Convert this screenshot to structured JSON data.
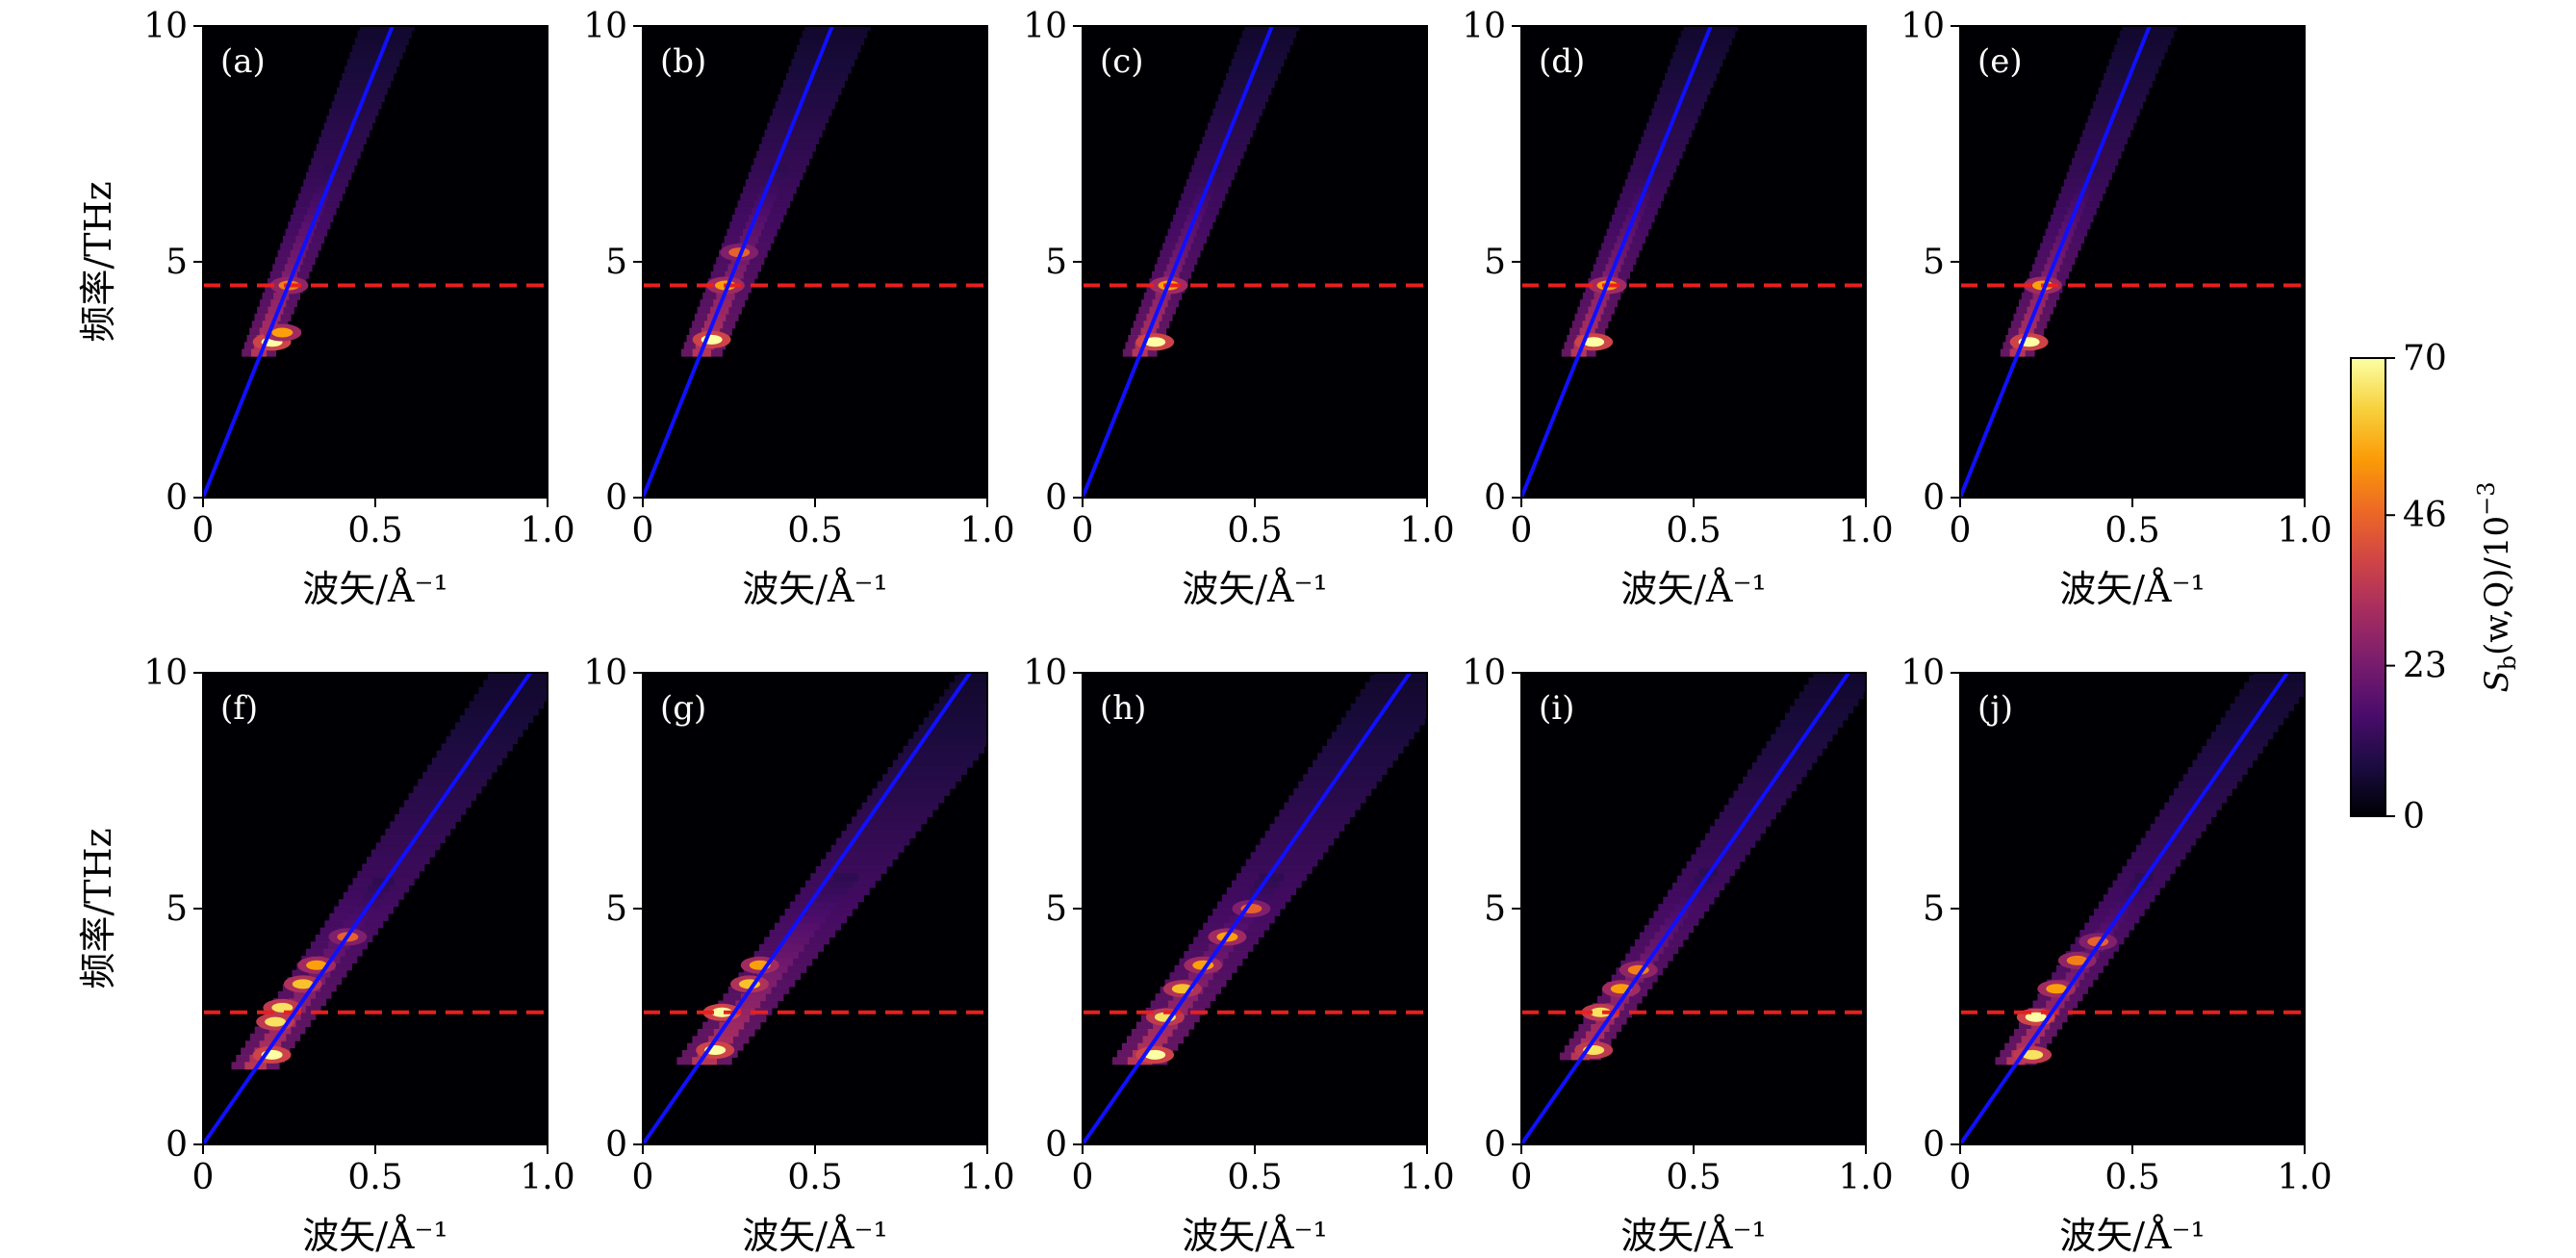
{
  "figure": {
    "colormap": "inferno",
    "colors": {
      "background_plot": "#000004",
      "dispersion_line": "#1010ff",
      "reference_line": "#e8201c",
      "panel_label": "#ffffff"
    }
  },
  "chart_data": [
    {
      "id": "a",
      "type": "heatmap",
      "panel_label": "(a)",
      "xlabel": "波矢/Å⁻¹",
      "ylabel": "频率/THz",
      "xlim": [
        0,
        1.0
      ],
      "ylim": [
        0,
        10
      ],
      "xticks": [
        "0",
        "0.5",
        "1.0"
      ],
      "yticks": [
        "0",
        "5",
        "10"
      ],
      "dispersion_line": {
        "x": [
          0,
          0.55
        ],
        "y": [
          0,
          10
        ]
      },
      "reference_line_y": 4.5,
      "hotspots": [
        {
          "q": 0.2,
          "f": 3.3,
          "intensity": 70
        },
        {
          "q": 0.23,
          "f": 3.5,
          "intensity": 55
        },
        {
          "q": 0.25,
          "f": 4.5,
          "intensity": 50
        }
      ],
      "ridge": {
        "slope": 18.5,
        "width": 0.05,
        "fmin": 3.0,
        "fmax": 10
      }
    },
    {
      "id": "b",
      "type": "heatmap",
      "panel_label": "(b)",
      "xlabel": "波矢/Å⁻¹",
      "ylabel": "",
      "xlim": [
        0,
        1.0
      ],
      "ylim": [
        0,
        10
      ],
      "xticks": [
        "0",
        "0.5",
        "1.0"
      ],
      "yticks": [
        "0",
        "5",
        "10"
      ],
      "dispersion_line": {
        "x": [
          0,
          0.55
        ],
        "y": [
          0,
          10
        ]
      },
      "reference_line_y": 4.5,
      "hotspots": [
        {
          "q": 0.2,
          "f": 3.35,
          "intensity": 70
        },
        {
          "q": 0.24,
          "f": 4.5,
          "intensity": 55
        },
        {
          "q": 0.28,
          "f": 5.2,
          "intensity": 45
        }
      ],
      "ridge": {
        "slope": 17.5,
        "width": 0.06,
        "fmin": 3.0,
        "fmax": 10
      }
    },
    {
      "id": "c",
      "type": "heatmap",
      "panel_label": "(c)",
      "xlabel": "波矢/Å⁻¹",
      "ylabel": "",
      "xlim": [
        0,
        1.0
      ],
      "ylim": [
        0,
        10
      ],
      "xticks": [
        "0",
        "0.5",
        "1.0"
      ],
      "yticks": [
        "0",
        "5",
        "10"
      ],
      "dispersion_line": {
        "x": [
          0,
          0.55
        ],
        "y": [
          0,
          10
        ]
      },
      "reference_line_y": 4.5,
      "hotspots": [
        {
          "q": 0.21,
          "f": 3.3,
          "intensity": 70
        },
        {
          "q": 0.25,
          "f": 4.5,
          "intensity": 55
        }
      ],
      "ridge": {
        "slope": 18.0,
        "width": 0.05,
        "fmin": 3.0,
        "fmax": 10
      }
    },
    {
      "id": "d",
      "type": "heatmap",
      "panel_label": "(d)",
      "xlabel": "波矢/Å⁻¹",
      "ylabel": "",
      "xlim": [
        0,
        1.0
      ],
      "ylim": [
        0,
        10
      ],
      "xticks": [
        "0",
        "0.5",
        "1.0"
      ],
      "yticks": [
        "0",
        "5",
        "10"
      ],
      "dispersion_line": {
        "x": [
          0,
          0.55
        ],
        "y": [
          0,
          10
        ]
      },
      "reference_line_y": 4.5,
      "hotspots": [
        {
          "q": 0.21,
          "f": 3.3,
          "intensity": 70
        },
        {
          "q": 0.25,
          "f": 4.5,
          "intensity": 55
        }
      ],
      "ridge": {
        "slope": 18.0,
        "width": 0.05,
        "fmin": 3.0,
        "fmax": 10
      }
    },
    {
      "id": "e",
      "type": "heatmap",
      "panel_label": "(e)",
      "xlabel": "波矢/Å⁻¹",
      "ylabel": "",
      "xlim": [
        0,
        1.0
      ],
      "ylim": [
        0,
        10
      ],
      "xticks": [
        "0",
        "0.5",
        "1.0"
      ],
      "yticks": [
        "0",
        "5",
        "10"
      ],
      "dispersion_line": {
        "x": [
          0,
          0.55
        ],
        "y": [
          0,
          10
        ]
      },
      "reference_line_y": 4.5,
      "hotspots": [
        {
          "q": 0.2,
          "f": 3.3,
          "intensity": 70
        },
        {
          "q": 0.24,
          "f": 4.5,
          "intensity": 55
        }
      ],
      "ridge": {
        "slope": 18.0,
        "width": 0.05,
        "fmin": 3.0,
        "fmax": 10
      }
    },
    {
      "id": "f",
      "type": "heatmap",
      "panel_label": "(f)",
      "xlabel": "波矢/Å⁻¹",
      "ylabel": "频率/THz",
      "xlim": [
        0,
        1.0
      ],
      "ylim": [
        0,
        10
      ],
      "xticks": [
        "0",
        "0.5",
        "1.0"
      ],
      "yticks": [
        "0",
        "5",
        "10"
      ],
      "dispersion_line": {
        "x": [
          0,
          0.95
        ],
        "y": [
          0,
          10
        ]
      },
      "reference_line_y": 2.8,
      "hotspots": [
        {
          "q": 0.2,
          "f": 1.9,
          "intensity": 70
        },
        {
          "q": 0.21,
          "f": 2.6,
          "intensity": 65
        },
        {
          "q": 0.23,
          "f": 2.9,
          "intensity": 65
        },
        {
          "q": 0.29,
          "f": 3.4,
          "intensity": 60
        },
        {
          "q": 0.33,
          "f": 3.8,
          "intensity": 55
        },
        {
          "q": 0.42,
          "f": 4.4,
          "intensity": 45
        }
      ],
      "ridge": {
        "slope": 10.5,
        "width": 0.07,
        "fmin": 1.6,
        "fmax": 10
      }
    },
    {
      "id": "g",
      "type": "heatmap",
      "panel_label": "(g)",
      "xlabel": "波矢/Å⁻¹",
      "ylabel": "",
      "xlim": [
        0,
        1.0
      ],
      "ylim": [
        0,
        10
      ],
      "xticks": [
        "0",
        "0.5",
        "1.0"
      ],
      "yticks": [
        "0",
        "5",
        "10"
      ],
      "dispersion_line": {
        "x": [
          0,
          0.95
        ],
        "y": [
          0,
          10
        ]
      },
      "reference_line_y": 2.8,
      "hotspots": [
        {
          "q": 0.21,
          "f": 2.0,
          "intensity": 70
        },
        {
          "q": 0.23,
          "f": 2.8,
          "intensity": 70
        },
        {
          "q": 0.31,
          "f": 3.4,
          "intensity": 60
        },
        {
          "q": 0.34,
          "f": 3.8,
          "intensity": 55
        }
      ],
      "ridge": {
        "slope": 9.5,
        "width": 0.08,
        "fmin": 1.7,
        "fmax": 10
      }
    },
    {
      "id": "h",
      "type": "heatmap",
      "panel_label": "(h)",
      "xlabel": "波矢/Å⁻¹",
      "ylabel": "",
      "xlim": [
        0,
        1.0
      ],
      "ylim": [
        0,
        10
      ],
      "xticks": [
        "0",
        "0.5",
        "1.0"
      ],
      "yticks": [
        "0",
        "5",
        "10"
      ],
      "dispersion_line": {
        "x": [
          0,
          0.95
        ],
        "y": [
          0,
          10
        ]
      },
      "reference_line_y": 2.8,
      "hotspots": [
        {
          "q": 0.21,
          "f": 1.9,
          "intensity": 70
        },
        {
          "q": 0.24,
          "f": 2.7,
          "intensity": 65
        },
        {
          "q": 0.29,
          "f": 3.3,
          "intensity": 60
        },
        {
          "q": 0.35,
          "f": 3.8,
          "intensity": 55
        },
        {
          "q": 0.42,
          "f": 4.4,
          "intensity": 55
        },
        {
          "q": 0.49,
          "f": 5.0,
          "intensity": 45
        }
      ],
      "ridge": {
        "slope": 10.2,
        "width": 0.08,
        "fmin": 1.7,
        "fmax": 10
      }
    },
    {
      "id": "i",
      "type": "heatmap",
      "panel_label": "(i)",
      "xlabel": "波矢/Å⁻¹",
      "ylabel": "",
      "xlim": [
        0,
        1.0
      ],
      "ylim": [
        0,
        10
      ],
      "xticks": [
        "0",
        "0.5",
        "1.0"
      ],
      "yticks": [
        "0",
        "5",
        "10"
      ],
      "dispersion_line": {
        "x": [
          0,
          0.95
        ],
        "y": [
          0,
          10
        ]
      },
      "reference_line_y": 2.8,
      "hotspots": [
        {
          "q": 0.21,
          "f": 2.0,
          "intensity": 65
        },
        {
          "q": 0.23,
          "f": 2.8,
          "intensity": 65
        },
        {
          "q": 0.29,
          "f": 3.3,
          "intensity": 55
        },
        {
          "q": 0.34,
          "f": 3.7,
          "intensity": 50
        }
      ],
      "ridge": {
        "slope": 10.5,
        "width": 0.06,
        "fmin": 1.8,
        "fmax": 10
      }
    },
    {
      "id": "j",
      "type": "heatmap",
      "panel_label": "(j)",
      "xlabel": "波矢/Å⁻¹",
      "ylabel": "",
      "xlim": [
        0,
        1.0
      ],
      "ylim": [
        0,
        10
      ],
      "xticks": [
        "0",
        "0.5",
        "1.0"
      ],
      "yticks": [
        "0",
        "5",
        "10"
      ],
      "dispersion_line": {
        "x": [
          0,
          0.95
        ],
        "y": [
          0,
          10
        ]
      },
      "reference_line_y": 2.8,
      "hotspots": [
        {
          "q": 0.21,
          "f": 1.9,
          "intensity": 65
        },
        {
          "q": 0.22,
          "f": 2.7,
          "intensity": 70
        },
        {
          "q": 0.28,
          "f": 3.3,
          "intensity": 55
        },
        {
          "q": 0.34,
          "f": 3.9,
          "intensity": 50
        },
        {
          "q": 0.4,
          "f": 4.3,
          "intensity": 45
        }
      ],
      "ridge": {
        "slope": 10.5,
        "width": 0.06,
        "fmin": 1.7,
        "fmax": 10
      }
    }
  ],
  "colorbar": {
    "label": "S_b(w,Q)/10^-3",
    "label_parts": {
      "s": "S",
      "sub": "b",
      "args": "(w,Q)/10",
      "sup": "−3"
    },
    "ticks": [
      "0",
      "23",
      "46",
      "70"
    ],
    "tick_values": [
      0,
      23,
      46,
      70
    ],
    "range": [
      0,
      70
    ]
  }
}
